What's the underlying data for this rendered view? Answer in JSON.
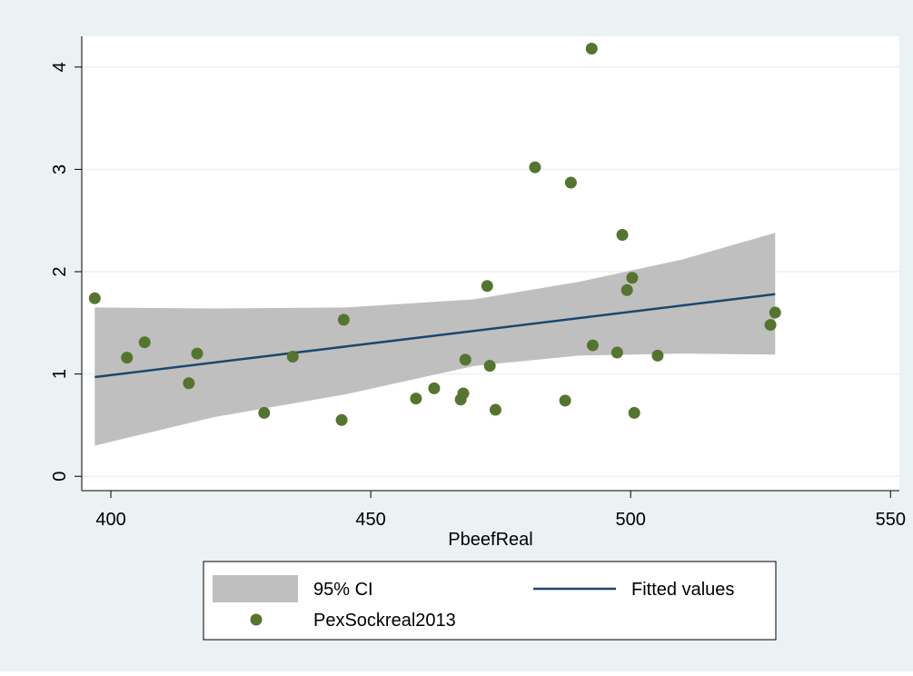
{
  "chart_data": {
    "type": "scatter",
    "x_label": "PbeefReal",
    "xlim": [
      394.4,
      551.7
    ],
    "ylim": [
      -0.14,
      4.3
    ],
    "xticks": [
      400,
      450,
      500,
      550
    ],
    "yticks": [
      0,
      1,
      2,
      3,
      4
    ],
    "grid": true,
    "legend": "bottom",
    "series": [
      {
        "name": "95% CI",
        "type": "area",
        "color": "#bfbfbf",
        "x": [
          396.9,
          420,
          445,
          470,
          490,
          510,
          527.8
        ],
        "lower": [
          0.3,
          0.58,
          0.8,
          1.08,
          1.18,
          1.2,
          1.19
        ],
        "upper": [
          1.65,
          1.64,
          1.65,
          1.73,
          1.9,
          2.12,
          2.38
        ]
      },
      {
        "name": "Fitted values",
        "type": "line",
        "color": "#1a476f",
        "x": [
          396.9,
          527.8
        ],
        "values": [
          0.97,
          1.78
        ]
      },
      {
        "name": "PexSockreal2013",
        "type": "scatter",
        "color": "#55752f",
        "x": [
          396.9,
          403.1,
          406.5,
          415.0,
          416.6,
          429.5,
          435.0,
          444.8,
          444.4,
          458.7,
          462.2,
          467.3,
          467.8,
          468.2,
          472.4,
          472.9,
          474.0,
          481.6,
          487.4,
          488.5,
          492.5,
          492.7,
          497.4,
          498.4,
          499.3,
          500.3,
          500.7,
          505.2,
          526.9,
          527.8
        ],
        "values": [
          1.74,
          1.16,
          1.31,
          0.91,
          1.2,
          0.62,
          1.17,
          1.53,
          0.55,
          0.76,
          0.86,
          0.75,
          0.81,
          1.14,
          1.86,
          1.08,
          0.65,
          3.02,
          0.74,
          2.87,
          4.18,
          1.28,
          1.21,
          2.36,
          1.82,
          1.94,
          0.62,
          1.18,
          1.48,
          1.6
        ]
      }
    ]
  }
}
